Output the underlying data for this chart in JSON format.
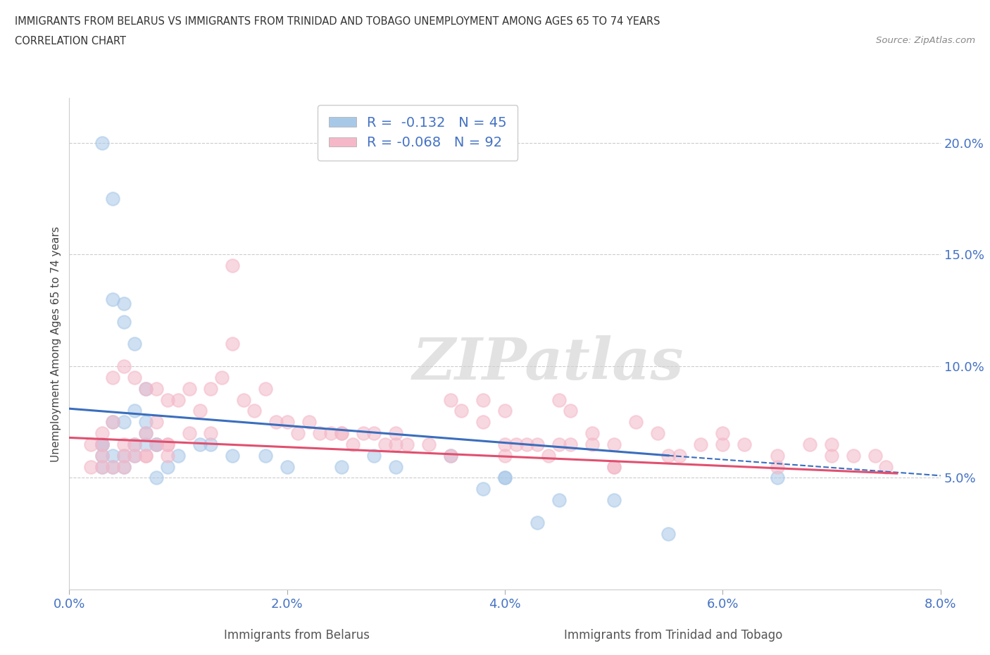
{
  "title_line1": "IMMIGRANTS FROM BELARUS VS IMMIGRANTS FROM TRINIDAD AND TOBAGO UNEMPLOYMENT AMONG AGES 65 TO 74 YEARS",
  "title_line2": "CORRELATION CHART",
  "source": "Source: ZipAtlas.com",
  "xlabel_blue": "Immigrants from Belarus",
  "xlabel_pink": "Immigrants from Trinidad and Tobago",
  "ylabel": "Unemployment Among Ages 65 to 74 years",
  "watermark": "ZIPatlas",
  "legend_blue_r": "R =  -0.132",
  "legend_blue_n": "N = 45",
  "legend_pink_r": "R = -0.068",
  "legend_pink_n": "N = 92",
  "blue_color": "#a8c8e8",
  "pink_color": "#f4b8c8",
  "blue_line_color": "#3a6ebd",
  "pink_line_color": "#e05070",
  "xlim": [
    0.0,
    0.08
  ],
  "ylim": [
    0.0,
    0.22
  ],
  "yticks": [
    0.05,
    0.1,
    0.15,
    0.2
  ],
  "ytick_labels": [
    "5.0%",
    "10.0%",
    "15.0%",
    "20.0%"
  ],
  "xticks": [
    0.0,
    0.02,
    0.04,
    0.06,
    0.08
  ],
  "xtick_labels": [
    "0.0%",
    "2.0%",
    "4.0%",
    "6.0%",
    "8.0%"
  ],
  "blue_scatter": {
    "x": [
      0.003,
      0.004,
      0.004,
      0.005,
      0.005,
      0.006,
      0.007,
      0.007,
      0.008,
      0.008,
      0.003,
      0.004,
      0.005,
      0.006,
      0.003,
      0.004,
      0.005,
      0.006,
      0.007,
      0.003,
      0.003,
      0.004,
      0.005,
      0.006,
      0.007,
      0.008,
      0.009,
      0.01,
      0.012,
      0.013,
      0.015,
      0.018,
      0.02,
      0.025,
      0.028,
      0.03,
      0.035,
      0.038,
      0.04,
      0.04,
      0.043,
      0.045,
      0.05,
      0.055,
      0.065
    ],
    "y": [
      0.2,
      0.175,
      0.13,
      0.128,
      0.12,
      0.11,
      0.09,
      0.075,
      0.065,
      0.065,
      0.065,
      0.075,
      0.075,
      0.08,
      0.06,
      0.06,
      0.06,
      0.065,
      0.07,
      0.065,
      0.055,
      0.055,
      0.055,
      0.06,
      0.065,
      0.05,
      0.055,
      0.06,
      0.065,
      0.065,
      0.06,
      0.06,
      0.055,
      0.055,
      0.06,
      0.055,
      0.06,
      0.045,
      0.05,
      0.05,
      0.03,
      0.04,
      0.04,
      0.025,
      0.05
    ]
  },
  "pink_scatter": {
    "x": [
      0.002,
      0.002,
      0.003,
      0.003,
      0.004,
      0.004,
      0.005,
      0.005,
      0.006,
      0.006,
      0.007,
      0.007,
      0.008,
      0.008,
      0.009,
      0.009,
      0.003,
      0.004,
      0.005,
      0.006,
      0.007,
      0.008,
      0.009,
      0.01,
      0.011,
      0.012,
      0.013,
      0.014,
      0.015,
      0.016,
      0.017,
      0.018,
      0.019,
      0.02,
      0.021,
      0.022,
      0.023,
      0.024,
      0.025,
      0.026,
      0.027,
      0.028,
      0.029,
      0.03,
      0.031,
      0.033,
      0.035,
      0.036,
      0.038,
      0.04,
      0.041,
      0.043,
      0.045,
      0.046,
      0.048,
      0.05,
      0.052,
      0.054,
      0.056,
      0.058,
      0.06,
      0.062,
      0.065,
      0.068,
      0.07,
      0.072,
      0.074,
      0.003,
      0.005,
      0.007,
      0.009,
      0.011,
      0.013,
      0.015,
      0.025,
      0.03,
      0.035,
      0.04,
      0.045,
      0.05,
      0.055,
      0.06,
      0.065,
      0.07,
      0.075,
      0.038,
      0.04,
      0.042,
      0.044,
      0.046,
      0.048,
      0.05
    ],
    "y": [
      0.065,
      0.055,
      0.07,
      0.065,
      0.075,
      0.055,
      0.065,
      0.06,
      0.06,
      0.065,
      0.06,
      0.07,
      0.075,
      0.065,
      0.065,
      0.06,
      0.06,
      0.095,
      0.1,
      0.095,
      0.09,
      0.09,
      0.085,
      0.085,
      0.09,
      0.08,
      0.09,
      0.095,
      0.11,
      0.085,
      0.08,
      0.09,
      0.075,
      0.075,
      0.07,
      0.075,
      0.07,
      0.07,
      0.07,
      0.065,
      0.07,
      0.07,
      0.065,
      0.07,
      0.065,
      0.065,
      0.085,
      0.08,
      0.075,
      0.06,
      0.065,
      0.065,
      0.085,
      0.08,
      0.07,
      0.065,
      0.075,
      0.07,
      0.06,
      0.065,
      0.07,
      0.065,
      0.06,
      0.065,
      0.065,
      0.06,
      0.06,
      0.055,
      0.055,
      0.06,
      0.065,
      0.07,
      0.07,
      0.145,
      0.07,
      0.065,
      0.06,
      0.065,
      0.065,
      0.055,
      0.06,
      0.065,
      0.055,
      0.06,
      0.055,
      0.085,
      0.08,
      0.065,
      0.06,
      0.065,
      0.065,
      0.055
    ]
  },
  "blue_line": {
    "x_start": 0.0,
    "y_start": 0.081,
    "x_solid_end": 0.055,
    "y_solid_end": 0.06,
    "x_dash_end": 0.08,
    "y_dash_end": 0.051
  },
  "pink_line": {
    "x_start": 0.0,
    "y_start": 0.068,
    "x_end": 0.076,
    "y_end": 0.052
  }
}
